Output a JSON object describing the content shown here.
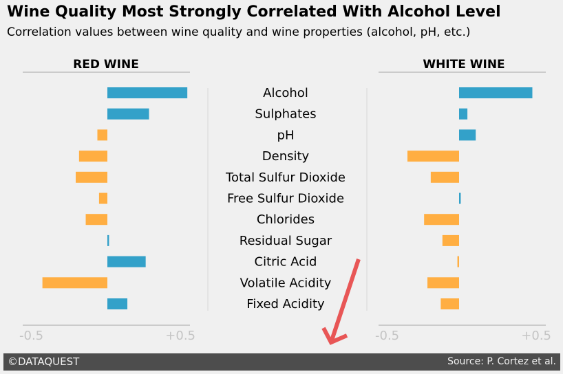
{
  "header": {
    "title": "Wine Quality Most Strongly Correlated With Alcohol Level",
    "subtitle": "Correlation values between wine quality and wine properties (alcohol, pH, etc.)"
  },
  "chart_data": {
    "type": "bar",
    "orientation": "horizontal",
    "categories": [
      "Alcohol",
      "Sulphates",
      "pH",
      "Density",
      "Total Sulfur Dioxide",
      "Free Sulfur Dioxide",
      "Chlorides",
      "Residual Sugar",
      "Citric Acid",
      "Volatile Acidity",
      "Fixed Acidity"
    ],
    "panels": [
      {
        "label": "RED WINE",
        "values": [
          0.48,
          0.25,
          -0.06,
          -0.17,
          -0.19,
          -0.05,
          -0.13,
          0.01,
          0.23,
          -0.39,
          0.12
        ]
      },
      {
        "label": "WHITE WINE",
        "values": [
          0.44,
          0.05,
          0.1,
          -0.31,
          -0.17,
          0.01,
          -0.21,
          -0.1,
          -0.01,
          -0.19,
          -0.11
        ]
      }
    ],
    "xlim": [
      -0.5,
      0.5
    ],
    "x_tick_labels": [
      "-0.5",
      "+0.5"
    ],
    "colors": {
      "positive": "#33a1c9",
      "negative": "#ffae42"
    },
    "grid": false
  },
  "footer": {
    "left": "©DATAQUEST",
    "right": "Source: P. Cortez et al."
  }
}
